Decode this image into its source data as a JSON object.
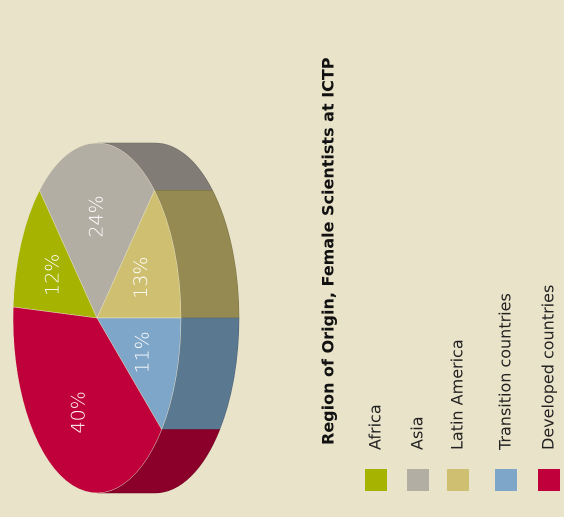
{
  "chart_data": {
    "type": "pie",
    "title": "Region of Origin, Female Scientists at ICTP",
    "categories": [
      "Africa",
      "Asia",
      "Latin America",
      "Transition countries",
      "Developed countries"
    ],
    "values": [
      12,
      24,
      13,
      11,
      40
    ],
    "value_labels": [
      "12%",
      "24%",
      "13%",
      "11%",
      "40%"
    ],
    "colors": [
      "#a6b300",
      "#b3aea4",
      "#cfc071",
      "#7ea6c9",
      "#bf003a"
    ]
  }
}
